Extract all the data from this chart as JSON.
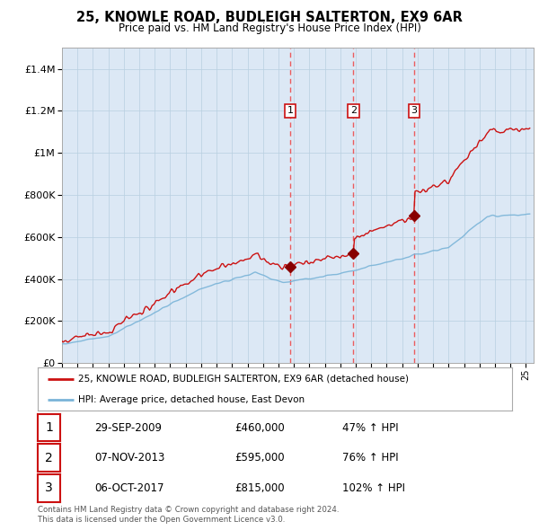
{
  "title": "25, KNOWLE ROAD, BUDLEIGH SALTERTON, EX9 6AR",
  "subtitle": "Price paid vs. HM Land Registry's House Price Index (HPI)",
  "hpi_label": "HPI: Average price, detached house, East Devon",
  "property_label": "25, KNOWLE ROAD, BUDLEIGH SALTERTON, EX9 6AR (detached house)",
  "footer1": "Contains HM Land Registry data © Crown copyright and database right 2024.",
  "footer2": "This data is licensed under the Open Government Licence v3.0.",
  "transactions": [
    {
      "num": 1,
      "date": "29-SEP-2009",
      "price": 460000,
      "pct": "47%",
      "year": 2009.75
    },
    {
      "num": 2,
      "date": "07-NOV-2013",
      "price": 595000,
      "pct": "76%",
      "year": 2013.85
    },
    {
      "num": 3,
      "date": "06-OCT-2017",
      "price": 815000,
      "pct": "102%",
      "year": 2017.78
    }
  ],
  "hpi_color": "#7ab4d8",
  "price_color": "#cc1111",
  "vline_color": "#ee4444",
  "marker_color": "#880000",
  "bg_color": "#dce8f5",
  "grid_color": "#b8cfe0",
  "ylim": [
    0,
    1500000
  ],
  "xlim_start": 1995.0,
  "xlim_end": 2025.5,
  "yticks": [
    0,
    200000,
    400000,
    600000,
    800000,
    1000000,
    1200000,
    1400000
  ]
}
